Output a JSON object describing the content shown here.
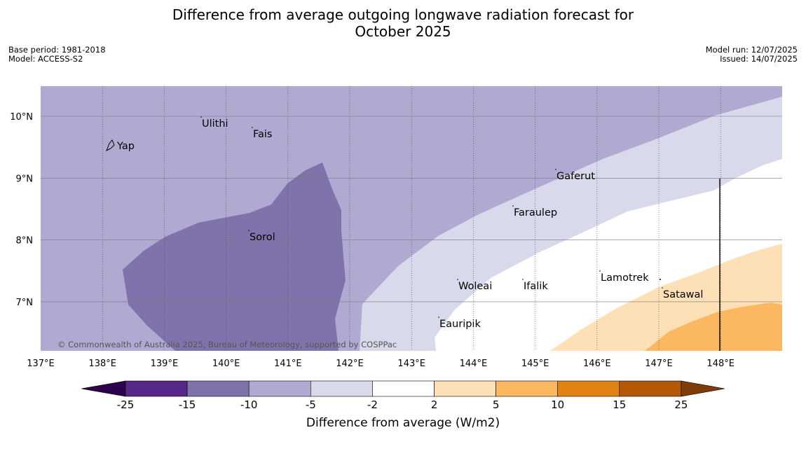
{
  "header": {
    "title_line1": "Difference from average outgoing longwave radiation forecast for",
    "title_line2": "October 2025",
    "base_period": "Base period: 1981-2018",
    "model": "Model: ACCESS-S2",
    "model_run": "Model run: 12/07/2025",
    "issued": "Issued: 14/07/2025"
  },
  "map": {
    "lon_ticks": [
      "137°E",
      "138°E",
      "139°E",
      "140°E",
      "141°E",
      "142°E",
      "143°E",
      "144°E",
      "145°E",
      "146°E",
      "147°E",
      "148°E"
    ],
    "lat_ticks": [
      "10°N",
      "9°N",
      "8°N",
      "7°N"
    ],
    "places": [
      "Yap",
      "Ulithi",
      "Fais",
      "Gaferut",
      "Faraulep",
      "Sorol",
      "Woleai",
      "Ifalik",
      "Lamotrek",
      "Satawal",
      "Eauripik"
    ],
    "copyright": "© Commonwealth of Australia 2025, Bureau of Meteorology, supported by COSPPac",
    "colors": {
      "-15_to_-10": "#8073ac",
      "-10_to_-5": "#b0aad2",
      "-5_to_-2": "#d8d9ea",
      "-2_to_2": "#ffffff",
      "2_to_5": "#fde0b6",
      "5_to_10": "#fbb861"
    }
  },
  "colorbar": {
    "ticks": [
      "-25",
      "-15",
      "-10",
      "-5",
      "-2",
      "2",
      "5",
      "10",
      "15",
      "25"
    ],
    "colors": [
      "#542788",
      "#8073ac",
      "#b0aad2",
      "#d8d9ea",
      "#ffffff",
      "#fde0b6",
      "#fbb861",
      "#e08214",
      "#b35806"
    ],
    "under_color": "#2d004b",
    "over_color": "#7f3b08",
    "label": "Difference from average (W/m2)"
  }
}
